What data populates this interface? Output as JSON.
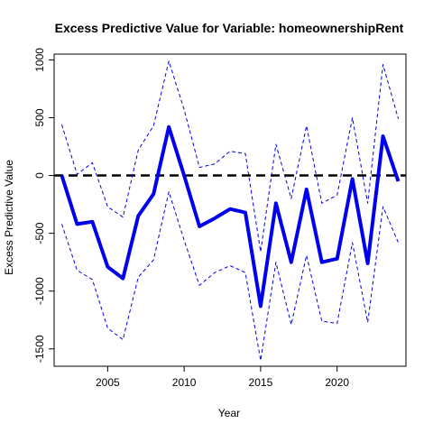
{
  "chart_data": {
    "type": "line",
    "title": "Excess Predictive Value for Variable: homeownershipRent",
    "xlabel": "Year",
    "ylabel": "Excess Predictive Value",
    "xlim": [
      2001.5,
      2024.5
    ],
    "ylim": [
      -1650,
      1050
    ],
    "xticks": [
      2005,
      2010,
      2015,
      2020
    ],
    "yticks": [
      -1500,
      -1000,
      -500,
      0,
      500,
      1000
    ],
    "reference_line": {
      "y": 0,
      "style": "dashed",
      "color": "#000000"
    },
    "x": [
      2002,
      2003,
      2004,
      2005,
      2006,
      2007,
      2008,
      2009,
      2010,
      2011,
      2012,
      2013,
      2014,
      2015,
      2016,
      2017,
      2018,
      2019,
      2020,
      2021,
      2022,
      2023,
      2024
    ],
    "series": [
      {
        "name": "estimate",
        "color": "#0000ee",
        "style": "solid",
        "values": [
          0,
          -420,
          -400,
          -790,
          -890,
          -350,
          -160,
          420,
          0,
          -440,
          -370,
          -290,
          -320,
          -1130,
          -240,
          -750,
          -120,
          -750,
          -720,
          -30,
          -760,
          340,
          -50
        ]
      },
      {
        "name": "upper bound",
        "color": "#0000ee",
        "style": "dashed",
        "values": [
          440,
          10,
          110,
          -270,
          -360,
          220,
          430,
          990,
          570,
          70,
          100,
          210,
          190,
          -660,
          270,
          -200,
          430,
          -240,
          -170,
          500,
          -240,
          960,
          490
        ]
      },
      {
        "name": "lower bound",
        "color": "#0000ee",
        "style": "dashed",
        "values": [
          -420,
          -820,
          -900,
          -1320,
          -1420,
          -880,
          -730,
          -140,
          -560,
          -950,
          -840,
          -780,
          -840,
          -1600,
          -750,
          -1290,
          -690,
          -1260,
          -1280,
          -580,
          -1270,
          -270,
          -580
        ]
      }
    ]
  }
}
